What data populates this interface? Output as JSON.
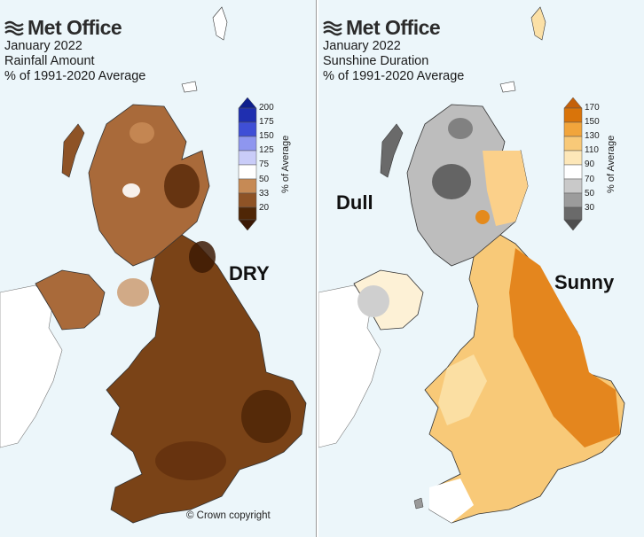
{
  "left_panel": {
    "brand": "Met Office",
    "period": "January 2022",
    "variable": "Rainfall Amount",
    "baseline": "% of 1991-2020 Average",
    "callout": "DRY",
    "copyright": "© Crown copyright",
    "legend": {
      "axis_title": "% of Average",
      "ticks": [
        "200",
        "175",
        "150",
        "125",
        "75",
        "50",
        "33",
        "20"
      ],
      "colors": [
        "#0f1f8c",
        "#3f4fd6",
        "#8e96ef",
        "#c9ccf8",
        "#ffffff",
        "#c68a55",
        "#8e5326",
        "#4f2606"
      ]
    }
  },
  "right_panel": {
    "brand": "Met Office",
    "period": "January 2022",
    "variable": "Sunshine Duration",
    "baseline": "% of 1991-2020 Average",
    "callout_dull": "Dull",
    "callout_sunny": "Sunny",
    "legend": {
      "axis_title": "% of Average",
      "ticks": [
        "170",
        "150",
        "130",
        "110",
        "90",
        "70",
        "50",
        "30"
      ],
      "colors": [
        "#d9740a",
        "#f1a53c",
        "#f8c978",
        "#fde7b8",
        "#ffffff",
        "#c9c9c9",
        "#9c9c9c",
        "#4e4e4e"
      ]
    }
  }
}
